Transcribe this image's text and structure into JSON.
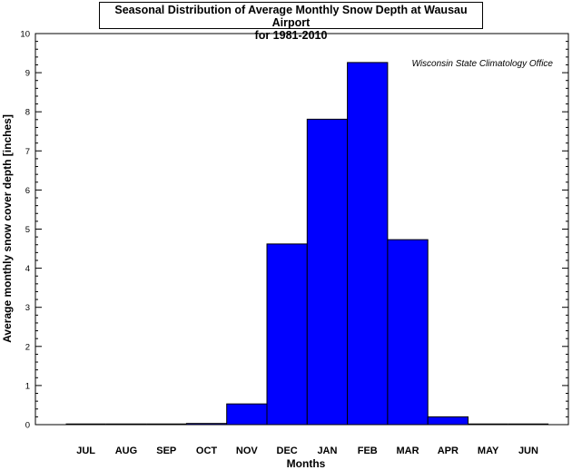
{
  "chart_data": {
    "type": "bar",
    "title": "Seasonal Distribution of Average Monthly Snow Depth at Wausau Airport",
    "subtitle": "for 1981-2010",
    "annotation": "Wisconsin State Climatology Office",
    "xlabel": "Months",
    "ylabel": "Average monthly snow cover depth [inches]",
    "categories": [
      "JUL",
      "AUG",
      "SEP",
      "OCT",
      "NOV",
      "DEC",
      "JAN",
      "FEB",
      "MAR",
      "APR",
      "MAY",
      "JUN"
    ],
    "values": [
      0,
      0,
      0,
      0.03,
      0.53,
      4.62,
      7.81,
      9.26,
      4.73,
      0.2,
      0,
      0
    ],
    "ylim": [
      0,
      10
    ],
    "yticks": [
      "0",
      "1",
      "2",
      "3",
      "4",
      "5",
      "6",
      "7",
      "8",
      "9",
      "10"
    ],
    "bar_color": "#0000ff",
    "grid": false,
    "legend": "none"
  }
}
